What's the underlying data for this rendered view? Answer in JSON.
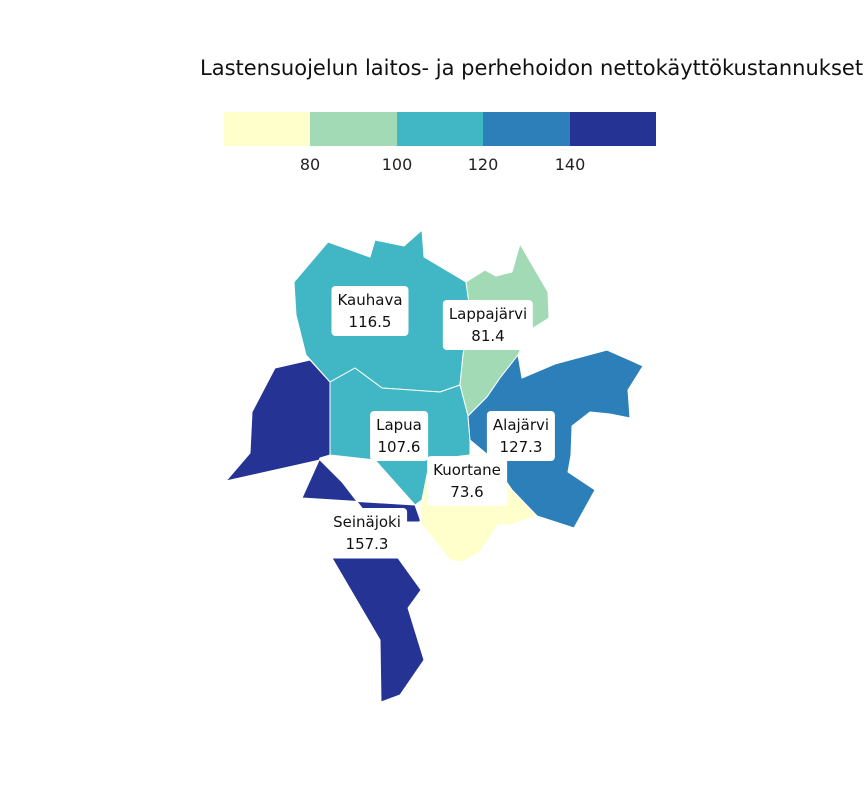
{
  "title": "Lastensuojelun laitos- ja perhehoidon nettokäyttökustannukset",
  "legend": {
    "colors": [
      "#ffffcc",
      "#a1dab4",
      "#41b6c4",
      "#2c7fb8",
      "#253494"
    ],
    "ticks": [
      "80",
      "100",
      "120",
      "140"
    ]
  },
  "regions": [
    {
      "name": "Kauhava",
      "value": "116.5",
      "color": "#41b6c4"
    },
    {
      "name": "Lappajärvi",
      "value": "81.4",
      "color": "#a1dab4"
    },
    {
      "name": "Lapua",
      "value": "107.6",
      "color": "#41b6c4"
    },
    {
      "name": "Alajärvi",
      "value": "127.3",
      "color": "#2c7fb8"
    },
    {
      "name": "Kuortane",
      "value": "73.6",
      "color": "#ffffcc"
    },
    {
      "name": "Seinäjoki",
      "value": "157.3",
      "color": "#253494"
    }
  ]
}
